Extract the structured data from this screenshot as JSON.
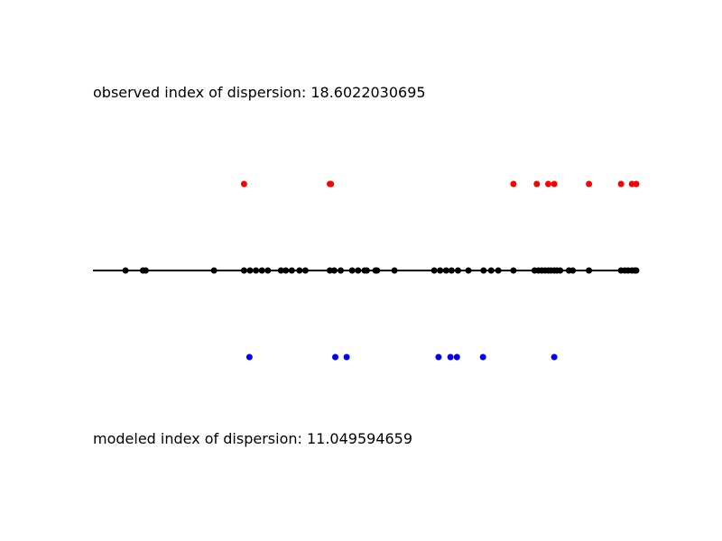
{
  "chart_data": {
    "type": "scatter",
    "title": "",
    "annotations": {
      "observed": "observed index of dispersion: 18.6022030695",
      "modeled": "modeled index of dispersion: 11.049594659"
    },
    "xlim": [
      0,
      1
    ],
    "grid": false,
    "colors": {
      "line": "#000000",
      "all": "#000000",
      "upper": "#ff0000",
      "lower": "#0000ff"
    },
    "series": [
      {
        "row": "middle",
        "color": "#000000",
        "x": [
          0.06,
          0.092,
          0.097,
          0.223,
          0.278,
          0.289,
          0.3,
          0.311,
          0.322,
          0.346,
          0.355,
          0.366,
          0.38,
          0.391,
          0.436,
          0.444,
          0.456,
          0.477,
          0.488,
          0.5,
          0.504,
          0.52,
          0.523,
          0.555,
          0.628,
          0.639,
          0.65,
          0.66,
          0.672,
          0.691,
          0.719,
          0.733,
          0.746,
          0.774,
          0.813,
          0.82,
          0.826,
          0.832,
          0.838,
          0.843,
          0.849,
          0.854,
          0.86,
          0.876,
          0.883,
          0.913,
          0.972,
          0.979,
          0.985,
          0.992,
          0.997,
          1.0
        ]
      },
      {
        "row": "upper",
        "color": "#ff0000",
        "x": [
          0.278,
          0.436,
          0.438,
          0.774,
          0.817,
          0.838,
          0.849,
          0.913,
          0.972,
          0.992,
          1.0
        ]
      },
      {
        "row": "lower",
        "color": "#0000ff",
        "x": [
          0.288,
          0.446,
          0.467,
          0.636,
          0.658,
          0.67,
          0.718,
          0.849
        ]
      }
    ]
  }
}
